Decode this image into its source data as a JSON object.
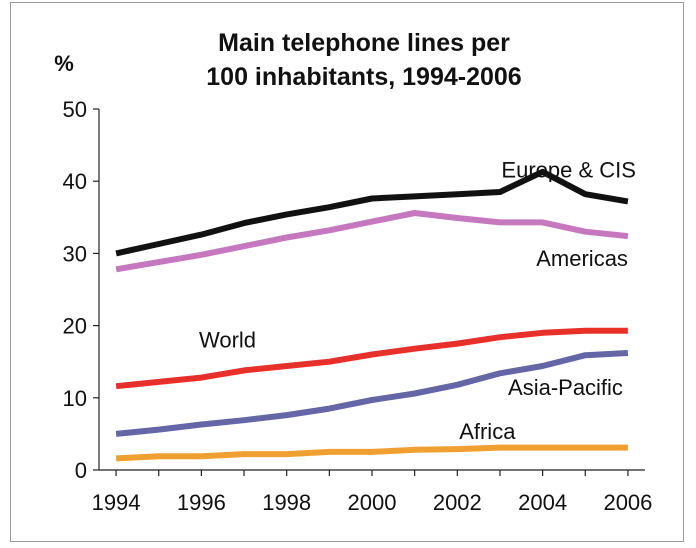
{
  "chart_data": {
    "type": "line",
    "title": "Main telephone lines per\n100 inhabitants, 1994-2006",
    "title_lines": [
      "Main telephone lines per",
      "100 inhabitants, 1994-2006"
    ],
    "ylabel": "%",
    "xlabel": "",
    "x": [
      1994,
      1995,
      1996,
      1997,
      1998,
      1999,
      2000,
      2001,
      2002,
      2003,
      2004,
      2005,
      2006
    ],
    "xticks": [
      "1994",
      "1996",
      "1998",
      "2000",
      "2002",
      "2004",
      "2006"
    ],
    "yticks": [
      "0",
      "10",
      "20",
      "30",
      "40",
      "50"
    ],
    "xlim": [
      1993.6,
      2006.4
    ],
    "ylim": [
      0,
      50
    ],
    "grid": false,
    "legend": "inline labels",
    "series": [
      {
        "name": "Europe & CIS",
        "color": "#111111",
        "values": [
          30.0,
          31.3,
          32.6,
          34.2,
          35.4,
          36.4,
          37.6,
          37.9,
          38.2,
          38.5,
          41.3,
          38.2,
          37.2
        ]
      },
      {
        "name": "Americas",
        "color": "#c678bf",
        "values": [
          27.8,
          28.8,
          29.8,
          31.0,
          32.2,
          33.2,
          34.4,
          35.6,
          34.9,
          34.3,
          34.3,
          33.0,
          32.4
        ]
      },
      {
        "name": "World",
        "color": "#e8302a",
        "values": [
          11.6,
          12.2,
          12.8,
          13.8,
          14.4,
          15.0,
          16.0,
          16.8,
          17.5,
          18.4,
          19.0,
          19.3,
          19.3
        ]
      },
      {
        "name": "Asia-Pacific",
        "color": "#6466a6",
        "values": [
          5.0,
          5.6,
          6.3,
          6.9,
          7.6,
          8.5,
          9.7,
          10.6,
          11.8,
          13.4,
          14.4,
          15.9,
          16.2
        ]
      },
      {
        "name": "Africa",
        "color": "#f0a030",
        "values": [
          1.6,
          1.9,
          1.9,
          2.2,
          2.2,
          2.5,
          2.5,
          2.8,
          2.9,
          3.1,
          3.1,
          3.1,
          3.1
        ]
      }
    ]
  }
}
